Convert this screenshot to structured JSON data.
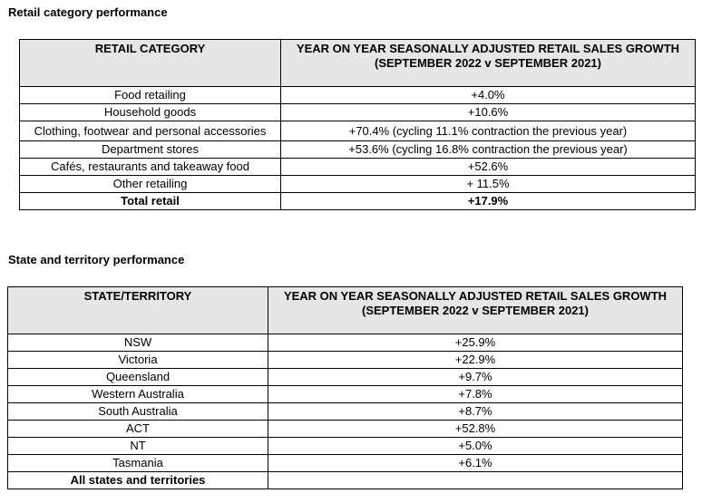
{
  "retail": {
    "heading": "Retail category performance",
    "col1_header": "RETAIL CATEGORY",
    "col2_header_line1": "YEAR ON YEAR SEASONALLY ADJUSTED RETAIL SALES GROWTH",
    "col2_header_line2": "(SEPTEMBER 2022 v SEPTEMBER 2021)",
    "rows": [
      {
        "category": "Food retailing",
        "growth": "+4.0%"
      },
      {
        "category": "Household goods",
        "growth": "+10.6%"
      },
      {
        "category": "Clothing, footwear and personal accessories",
        "growth": "+70.4% (cycling 11.1% contraction the previous year)"
      },
      {
        "category": "Department stores",
        "growth": "+53.6% (cycling 16.8% contraction the previous year)"
      },
      {
        "category": "Cafés, restaurants and takeaway food",
        "growth": "+52.6%"
      },
      {
        "category": "Other retailing",
        "growth": "+ 11.5%"
      }
    ],
    "total": {
      "category": "Total retail",
      "growth": "+17.9%"
    }
  },
  "state": {
    "heading": "State and territory performance",
    "col1_header": "STATE/TERRITORY",
    "col2_header_line1": "YEAR ON YEAR SEASONALLY ADJUSTED RETAIL SALES GROWTH",
    "col2_header_line2": "(SEPTEMBER 2022 v SEPTEMBER 2021)",
    "rows": [
      {
        "state": "NSW",
        "growth": "+25.9%"
      },
      {
        "state": "Victoria",
        "growth": "+22.9%"
      },
      {
        "state": "Queensland",
        "growth": "+9.7%"
      },
      {
        "state": "Western Australia",
        "growth": "+7.8%"
      },
      {
        "state": "South Australia",
        "growth": "+8.7%"
      },
      {
        "state": "ACT",
        "growth": "+52.8%"
      },
      {
        "state": "NT",
        "growth": "+5.0%"
      },
      {
        "state": "Tasmania",
        "growth": "+6.1%"
      }
    ],
    "total": {
      "state": "All states and territories",
      "growth": ""
    }
  },
  "colors": {
    "header_fill": "#e7e6e6",
    "border": "#000000"
  }
}
